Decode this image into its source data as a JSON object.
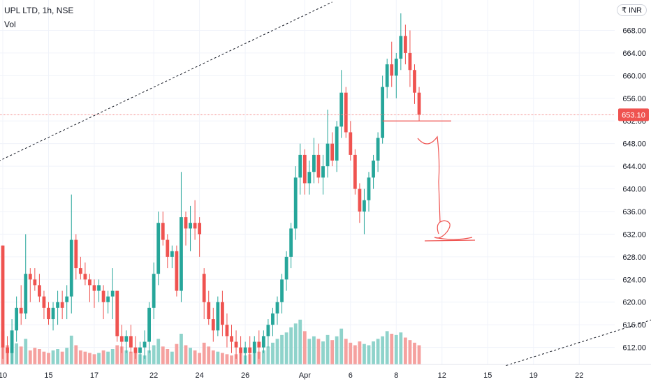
{
  "header": {
    "symbol": "UPL LTD, 1h, NSE",
    "volume_label": "Vol",
    "currency": "₹ INR"
  },
  "colors": {
    "up": "#26a69a",
    "down": "#ef5350",
    "vol_up": "#8fd3cb",
    "vol_down": "#f5a19f",
    "last_line": "#f28b8b",
    "annotation": "#ef5350",
    "trend": "#131722"
  },
  "chart_data": {
    "type": "candlestick",
    "title": "UPL LTD, 1h, NSE",
    "ylim": [
      608.5,
      672.5
    ],
    "yticks": [
      "612.00",
      "616.00",
      "620.00",
      "624.00",
      "628.00",
      "632.00",
      "636.00",
      "640.00",
      "644.00",
      "648.00",
      "652.00",
      "656.00",
      "660.00",
      "664.00",
      "668.00"
    ],
    "ytick_values": [
      612,
      616,
      620,
      624,
      628,
      632,
      636,
      640,
      644,
      648,
      652,
      656,
      660,
      664,
      668
    ],
    "xticks": [
      "10",
      "15",
      "17",
      "22",
      "24",
      "26",
      "Apr",
      "6",
      "8",
      "12",
      "15",
      "19",
      "22"
    ],
    "xtick_index": [
      0,
      10,
      20,
      33,
      43,
      53,
      66,
      76,
      86,
      96,
      106,
      116,
      126
    ],
    "last_price": "653.10",
    "last_value": 653.1,
    "candles": [
      [
        630,
        630,
        610,
        612
      ],
      [
        612,
        614,
        609,
        611
      ],
      [
        611,
        617,
        609,
        615
      ],
      [
        615,
        621,
        613,
        619
      ],
      [
        619,
        623,
        616,
        618
      ],
      [
        618,
        632,
        617,
        625
      ],
      [
        625,
        626,
        620,
        624
      ],
      [
        624,
        626,
        622,
        623
      ],
      [
        623,
        625,
        620,
        621
      ],
      [
        621,
        622,
        617,
        619
      ],
      [
        619,
        620,
        616,
        617
      ],
      [
        617,
        620,
        615,
        619
      ],
      [
        619,
        622,
        616,
        620
      ],
      [
        620,
        622,
        617,
        619
      ],
      [
        620,
        623,
        617,
        621
      ],
      [
        621,
        639,
        618,
        631
      ],
      [
        631,
        632,
        624,
        626
      ],
      [
        626,
        628,
        624,
        625
      ],
      [
        625,
        627,
        623,
        624
      ],
      [
        624,
        625,
        620,
        623
      ],
      [
        623,
        624,
        619,
        622
      ],
      [
        622,
        624,
        620,
        623
      ],
      [
        622,
        623,
        617,
        620
      ],
      [
        620,
        622,
        618,
        621
      ],
      [
        621,
        626,
        617,
        622
      ],
      [
        622,
        622,
        613,
        614
      ],
      [
        614,
        616,
        611,
        613
      ],
      [
        613,
        615,
        611,
        614
      ],
      [
        614,
        616,
        611,
        612
      ],
      [
        612,
        614,
        610,
        611
      ],
      [
        611,
        613,
        609,
        612
      ],
      [
        612,
        615,
        610,
        613
      ],
      [
        613,
        620,
        611,
        619
      ],
      [
        619,
        627,
        617,
        625
      ],
      [
        625,
        636,
        623,
        634
      ],
      [
        634,
        636,
        630,
        631
      ],
      [
        631,
        632,
        626,
        628
      ],
      [
        628,
        630,
        626,
        629
      ],
      [
        629,
        630,
        621,
        622
      ],
      [
        622,
        643,
        620,
        635
      ],
      [
        635,
        636,
        630,
        633
      ],
      [
        633,
        637,
        629,
        634
      ],
      [
        634,
        638,
        631,
        633
      ],
      [
        634,
        635,
        628,
        632
      ],
      [
        625,
        626,
        617,
        620
      ],
      [
        620,
        622,
        616,
        617
      ],
      [
        617,
        619,
        613,
        615
      ],
      [
        615,
        621,
        614,
        620
      ],
      [
        620,
        622,
        614,
        616
      ],
      [
        616,
        618,
        612,
        614
      ],
      [
        614,
        616,
        611,
        613
      ],
      [
        613,
        615,
        610,
        612
      ],
      [
        612,
        614,
        609,
        611
      ],
      [
        611,
        613,
        609,
        612
      ],
      [
        612,
        614,
        609,
        611
      ],
      [
        611,
        614,
        609,
        613
      ],
      [
        613,
        615,
        610,
        612
      ],
      [
        612,
        615,
        611,
        614
      ],
      [
        614,
        617,
        612,
        616
      ],
      [
        616,
        619,
        614,
        618
      ],
      [
        618,
        621,
        616,
        620
      ],
      [
        620,
        625,
        618,
        624
      ],
      [
        624,
        629,
        622,
        628
      ],
      [
        628,
        634,
        626,
        633
      ],
      [
        633,
        644,
        631,
        642
      ],
      [
        642,
        648,
        639,
        646
      ],
      [
        646,
        647,
        639,
        641
      ],
      [
        641,
        645,
        639,
        643
      ],
      [
        643,
        649,
        641,
        646
      ],
      [
        646,
        648,
        641,
        642
      ],
      [
        642,
        646,
        639,
        644
      ],
      [
        644,
        654,
        642,
        648
      ],
      [
        648,
        650,
        644,
        645
      ],
      [
        645,
        652,
        643,
        651
      ],
      [
        651,
        661,
        649,
        657
      ],
      [
        657,
        658,
        649,
        650
      ],
      [
        650,
        652,
        645,
        646
      ],
      [
        646,
        647,
        639,
        640
      ],
      [
        640,
        641,
        634,
        636
      ],
      [
        636,
        640,
        632,
        638
      ],
      [
        638,
        643,
        636,
        642
      ],
      [
        642,
        646,
        640,
        645
      ],
      [
        645,
        650,
        643,
        649
      ],
      [
        649,
        660,
        648,
        658
      ],
      [
        658,
        663,
        656,
        662
      ],
      [
        662,
        666,
        658,
        660
      ],
      [
        660,
        664,
        656,
        663
      ],
      [
        663,
        671,
        661,
        667
      ],
      [
        667,
        669,
        662,
        664
      ],
      [
        664,
        668,
        658,
        661
      ],
      [
        661,
        662,
        655,
        657
      ],
      [
        657,
        658,
        652,
        653.1
      ]
    ],
    "volume": [
      52,
      30,
      25,
      33,
      28,
      40,
      22,
      26,
      24,
      20,
      18,
      22,
      24,
      20,
      26,
      45,
      30,
      22,
      20,
      18,
      16,
      18,
      22,
      20,
      24,
      30,
      28,
      22,
      20,
      18,
      16,
      14,
      22,
      30,
      40,
      28,
      24,
      20,
      32,
      48,
      30,
      26,
      22,
      18,
      34,
      28,
      22,
      20,
      18,
      16,
      14,
      16,
      18,
      14,
      16,
      18,
      20,
      22,
      28,
      34,
      40,
      46,
      50,
      58,
      64,
      70,
      52,
      40,
      44,
      40,
      36,
      46,
      38,
      44,
      56,
      40,
      34,
      30,
      36,
      32,
      30,
      36,
      40,
      44,
      52,
      48,
      46,
      50,
      42,
      38,
      34,
      30
    ],
    "annotations": [
      {
        "kind": "trendline",
        "from": [
          -10,
          641.4
        ],
        "to": [
          72,
          673
        ]
      },
      {
        "kind": "trendline",
        "from": [
          110,
          608.8
        ],
        "to": [
          160,
          621.5
        ]
      },
      {
        "kind": "horizontal",
        "from": [
          83,
          652
        ],
        "to": [
          98,
          652
        ]
      },
      {
        "kind": "handwritten-arrow",
        "label": ""
      },
      {
        "kind": "handwritten-2",
        "label": ""
      }
    ]
  }
}
